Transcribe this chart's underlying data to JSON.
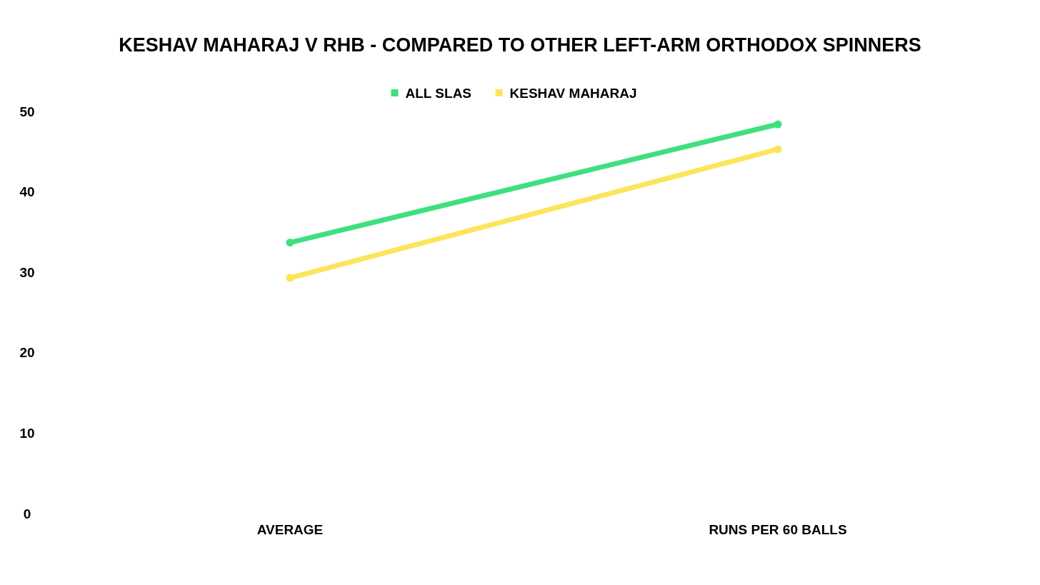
{
  "chart_data": {
    "type": "line",
    "title": "KESHAV MAHARAJ V RHB - COMPARED TO OTHER LEFT-ARM ORTHODOX SPINNERS",
    "categories": [
      "AVERAGE",
      "RUNS PER 60 BALLS"
    ],
    "series": [
      {
        "name": "ALL SLAS",
        "color": "#3ee07e",
        "values": [
          33.7,
          48.4
        ]
      },
      {
        "name": "KESHAV MAHARAJ",
        "color": "#fce55a",
        "values": [
          29.3,
          45.3
        ]
      }
    ],
    "ylim": [
      0,
      50
    ],
    "yticks": [
      0,
      10,
      20,
      30,
      40,
      50
    ],
    "grid": false,
    "legend": "top",
    "marker": "circle",
    "line_style": "solid"
  }
}
